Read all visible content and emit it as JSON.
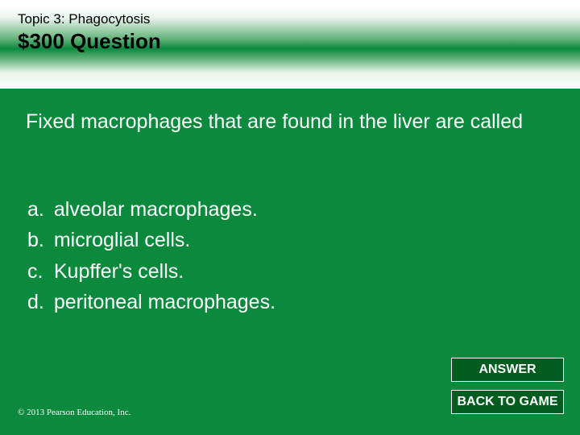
{
  "colors": {
    "background": "#0b8a3e",
    "button_bg": "#005d1f",
    "button_border": "#ffffff",
    "text_light": "#ffffff",
    "text_dark": "#000000",
    "gradient_stops": [
      "#ffffff",
      "#e9f4ec",
      "#6fb884",
      "#0b8a3e",
      "#6fb884",
      "#e9f4ec",
      "#ffffff"
    ]
  },
  "header": {
    "topic": "Topic 3: Phagocytosis",
    "title": "$300 Question",
    "topic_fontsize": 17,
    "title_fontsize": 26
  },
  "question": {
    "text": "Fixed macrophages that are found in the liver are called",
    "fontsize": 25
  },
  "options": {
    "fontsize": 25,
    "items": [
      {
        "letter": "a.",
        "text": "alveolar macrophages."
      },
      {
        "letter": "b.",
        "text": "microglial cells."
      },
      {
        "letter": "c.",
        "text": "Kupffer's cells."
      },
      {
        "letter": "d.",
        "text": "peritoneal macrophages."
      }
    ]
  },
  "buttons": {
    "answer": "ANSWER",
    "back": "BACK TO GAME"
  },
  "copyright": "© 2013 Pearson Education, Inc."
}
